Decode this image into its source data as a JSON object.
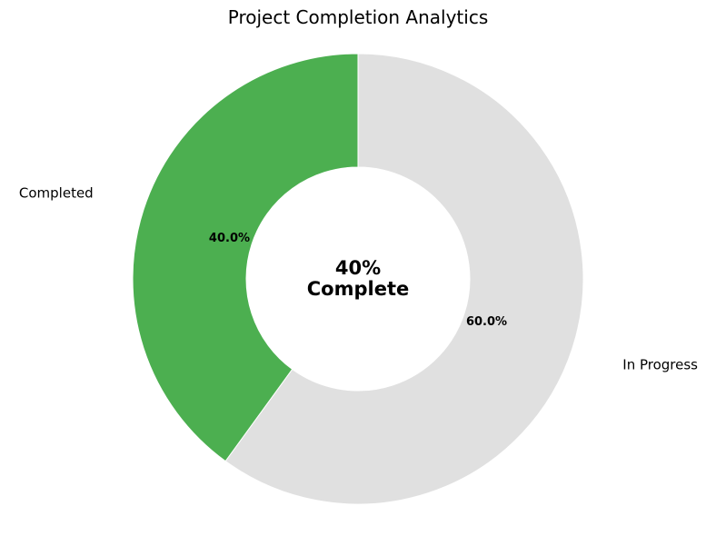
{
  "chart_data": {
    "type": "pie",
    "variant": "donut",
    "title": "Project Completion Analytics",
    "categories": [
      "Completed",
      "In Progress"
    ],
    "values": [
      40.0,
      60.0
    ],
    "percent_labels": [
      "40.0%",
      "60.0%"
    ],
    "colors": [
      "#4caf50",
      "#e0e0e0"
    ],
    "center_text": [
      "40%",
      "Complete"
    ],
    "legend": "none"
  }
}
